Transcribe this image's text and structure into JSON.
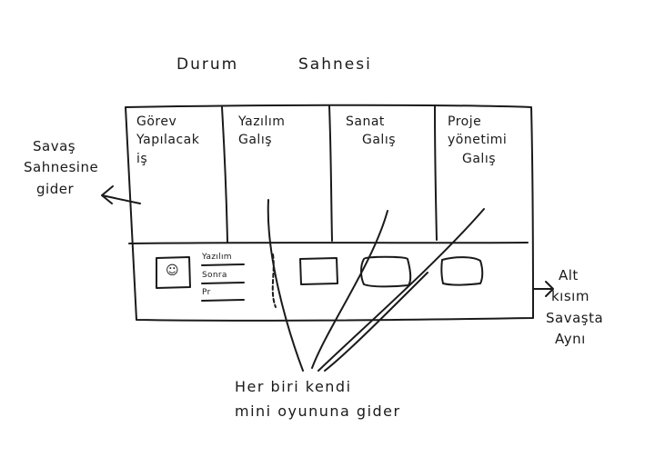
{
  "title": {
    "word1": "Durum",
    "word2": "Sahnesi"
  },
  "columns": [
    {
      "lines": [
        "Görev",
        "Yapılacak",
        "iş"
      ]
    },
    {
      "lines": [
        "Yazılım",
        "Galış"
      ]
    },
    {
      "lines": [
        "Sanat",
        "Galış"
      ]
    },
    {
      "lines": [
        "Proje",
        "yönetimi",
        "Galış"
      ]
    }
  ],
  "bottom_panel": {
    "info_lines": [
      "Yazılım",
      "Sonra",
      "Pr"
    ],
    "slots": [
      "slot-square",
      "slot-rounded",
      "slot-rounded",
      "slot-rounded"
    ]
  },
  "left_note": {
    "lines": [
      "Savaş",
      "Sahnesine",
      "gider"
    ]
  },
  "right_note": {
    "lines": [
      "Alt",
      "kısım",
      "Savaşta",
      "Aynı"
    ]
  },
  "bottom_note": {
    "lines": [
      "Her biri kendi",
      "mini oyununa gider"
    ]
  },
  "colors": {
    "ink": "#1a1a1a",
    "paper": "#ffffff"
  }
}
